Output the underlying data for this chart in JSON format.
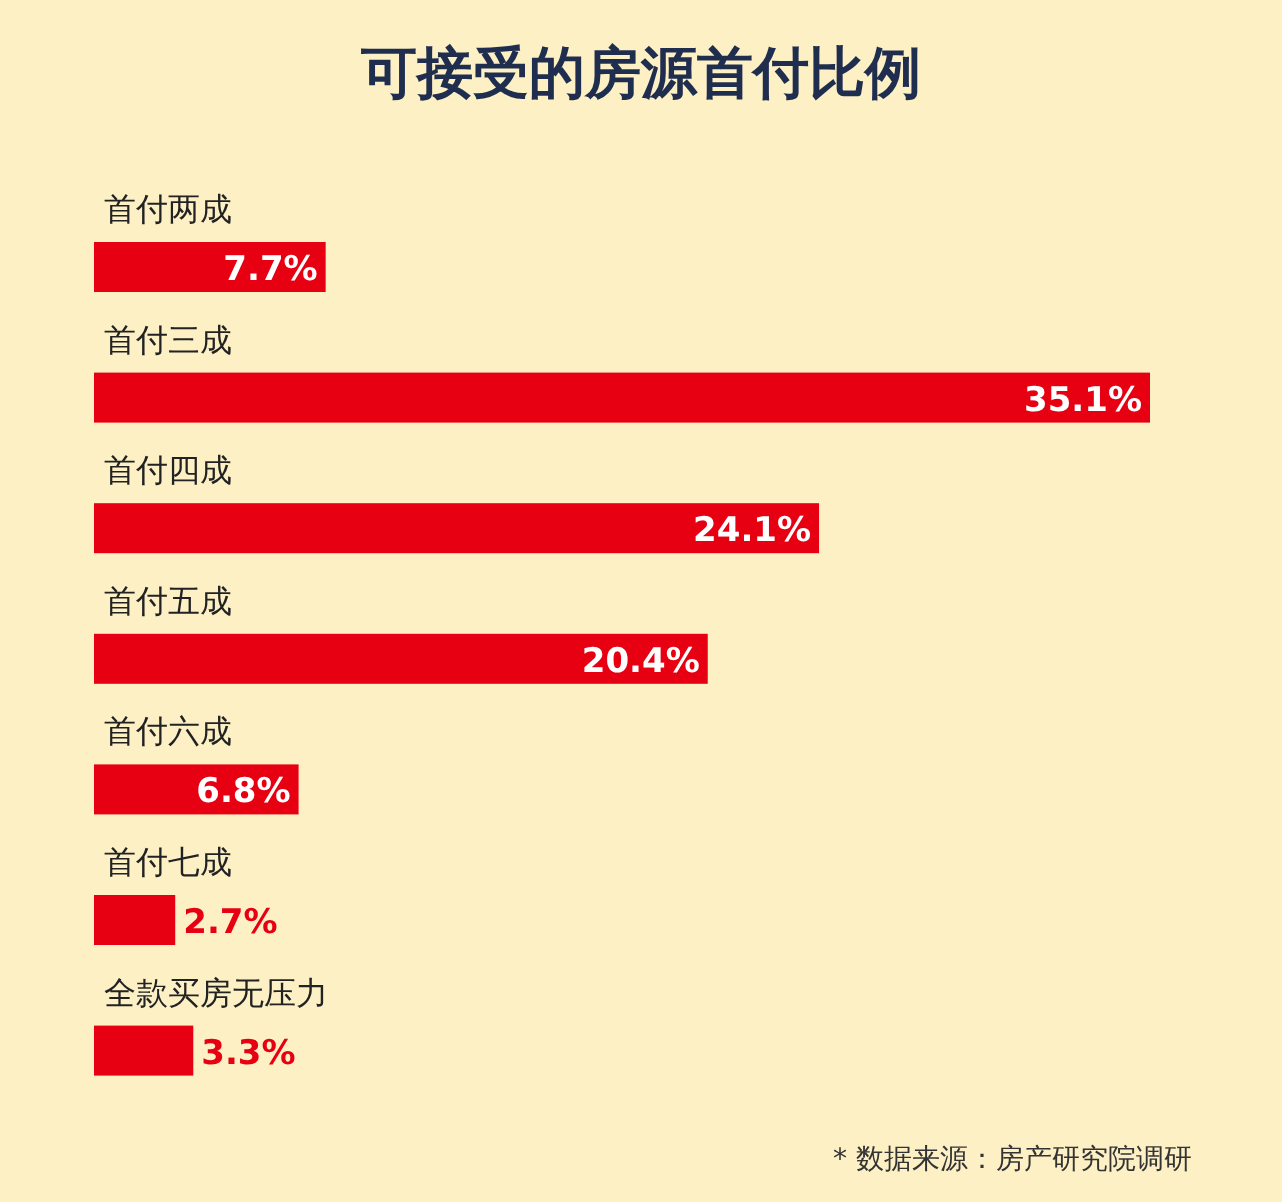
{
  "chart_data": {
    "type": "bar",
    "orientation": "horizontal",
    "title": "可接受的房源首付比例",
    "categories": [
      "首付两成",
      "首付三成",
      "首付四成",
      "首付五成",
      "首付六成",
      "首付七成",
      "全款买房无压力"
    ],
    "values": [
      7.7,
      35.1,
      24.1,
      20.4,
      6.8,
      2.7,
      3.3
    ],
    "value_labels": [
      "7.7%",
      "35.1%",
      "24.1%",
      "20.4%",
      "6.8%",
      "2.7%",
      "3.3%"
    ],
    "color": "#e60012",
    "annotations": [
      "* 数据来源：房产研究院调研"
    ]
  }
}
